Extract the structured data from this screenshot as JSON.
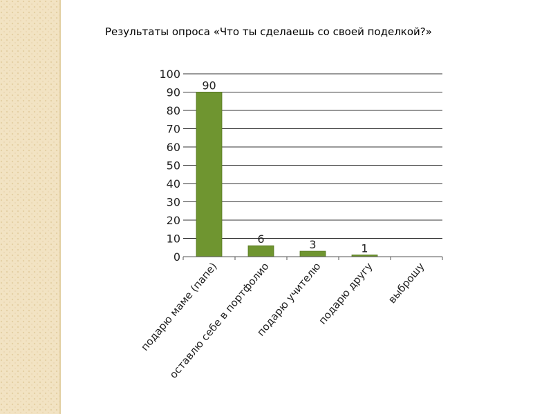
{
  "slide": {
    "title": "Результаты опроса «Что ты сделаешь со своей поделкой?»"
  },
  "chart_data": {
    "type": "bar",
    "title": "",
    "xlabel": "",
    "ylabel": "",
    "categories": [
      "подарю маме (папе)",
      "оставлю себе в портфолио",
      "подарю учителю",
      "подарю другу",
      "выброшу"
    ],
    "values": [
      90,
      6,
      3,
      1,
      0
    ],
    "data_labels": [
      "90",
      "6",
      "3",
      "1",
      ""
    ],
    "ylim": [
      0,
      100
    ],
    "yticks": [
      0,
      10,
      20,
      30,
      40,
      50,
      60,
      70,
      80,
      90,
      100
    ],
    "grid": true,
    "legend": "none",
    "colors": {
      "bar": "#6f9530",
      "bar_edge": "#55751f",
      "grid": "#333333",
      "axis": "#555555"
    }
  }
}
